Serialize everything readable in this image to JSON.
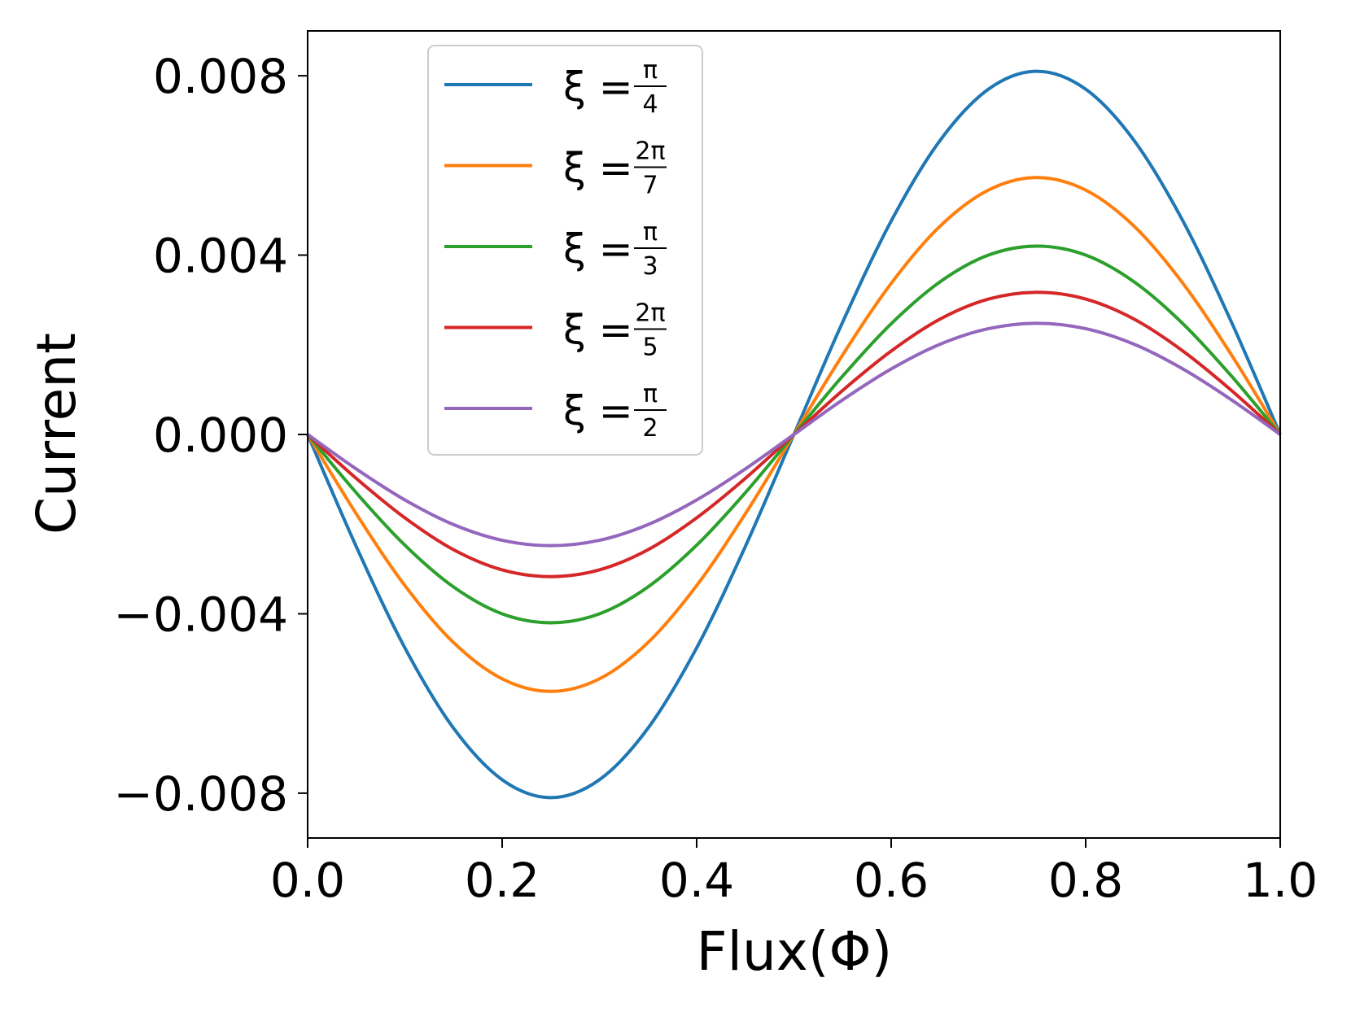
{
  "chart_data": {
    "type": "line",
    "title": "",
    "xlabel": "Flux(Φ)",
    "ylabel": "Current",
    "xlim": [
      0.0,
      1.0
    ],
    "ylim": [
      -0.009,
      0.009
    ],
    "xticks": [
      {
        "value": 0.0,
        "label": "0.0"
      },
      {
        "value": 0.2,
        "label": "0.2"
      },
      {
        "value": 0.4,
        "label": "0.4"
      },
      {
        "value": 0.6,
        "label": "0.6"
      },
      {
        "value": 0.8,
        "label": "0.8"
      },
      {
        "value": 1.0,
        "label": "1.0"
      }
    ],
    "yticks": [
      {
        "value": 0.008,
        "label": "0.008"
      },
      {
        "value": 0.004,
        "label": "0.004"
      },
      {
        "value": 0.0,
        "label": "0.000"
      },
      {
        "value": -0.004,
        "label": "−0.004"
      },
      {
        "value": -0.008,
        "label": "−0.008"
      }
    ],
    "grid": false,
    "legend_position": "top-center",
    "x": [
      0.0,
      0.05,
      0.1,
      0.15,
      0.2,
      0.25,
      0.3,
      0.35,
      0.4,
      0.45,
      0.5,
      0.55,
      0.6,
      0.65,
      0.7,
      0.75,
      0.8,
      0.85,
      0.9,
      0.95,
      1.0
    ],
    "series": [
      {
        "name": "ξ = π/4",
        "legend": {
          "lhs": "ξ =",
          "num": "π",
          "den": "4"
        },
        "color": "#1f77b4",
        "values": [
          0.0,
          -0.0025,
          -0.00476,
          -0.00655,
          -0.0077,
          -0.0081,
          -0.0077,
          -0.00655,
          -0.00476,
          -0.0025,
          0.0,
          0.0025,
          0.00476,
          0.00655,
          0.0077,
          0.0081,
          0.0077,
          0.00655,
          0.00476,
          0.0025,
          0.0
        ]
      },
      {
        "name": "ξ = 2π/7",
        "legend": {
          "lhs": "ξ =",
          "num": "2π",
          "den": "7"
        },
        "color": "#ff7f0e",
        "values": [
          0.0,
          -0.00177,
          -0.00337,
          -0.00464,
          -0.00545,
          -0.00573,
          -0.00545,
          -0.00464,
          -0.00337,
          -0.00177,
          0.0,
          0.00177,
          0.00337,
          0.00464,
          0.00545,
          0.00573,
          0.00545,
          0.00464,
          0.00337,
          0.00177,
          0.0
        ]
      },
      {
        "name": "ξ = π/3",
        "legend": {
          "lhs": "ξ =",
          "num": "π",
          "den": "3"
        },
        "color": "#2ca02c",
        "values": [
          0.0,
          -0.0013,
          -0.00247,
          -0.0034,
          -0.004,
          -0.0042,
          -0.004,
          -0.0034,
          -0.00247,
          -0.0013,
          0.0,
          0.0013,
          0.00247,
          0.0034,
          0.004,
          0.0042,
          0.004,
          0.0034,
          0.00247,
          0.0013,
          0.0
        ]
      },
      {
        "name": "ξ = 2π/5",
        "legend": {
          "lhs": "ξ =",
          "num": "2π",
          "den": "5"
        },
        "color": "#d62728",
        "values": [
          0.0,
          -0.00098,
          -0.00186,
          -0.00257,
          -0.00302,
          -0.00317,
          -0.00302,
          -0.00257,
          -0.00186,
          -0.00098,
          0.0,
          0.00098,
          0.00186,
          0.00257,
          0.00302,
          0.00317,
          0.00302,
          0.00257,
          0.00186,
          0.00098,
          0.0
        ]
      },
      {
        "name": "ξ = π/2",
        "legend": {
          "lhs": "ξ =",
          "num": "π",
          "den": "2"
        },
        "color": "#9467bd",
        "values": [
          0.0,
          -0.00077,
          -0.00146,
          -0.00201,
          -0.00236,
          -0.00248,
          -0.00236,
          -0.00201,
          -0.00146,
          -0.00077,
          0.0,
          0.00077,
          0.00146,
          0.00201,
          0.00236,
          0.00248,
          0.00236,
          0.00201,
          0.00146,
          0.00077,
          0.0
        ]
      }
    ]
  }
}
